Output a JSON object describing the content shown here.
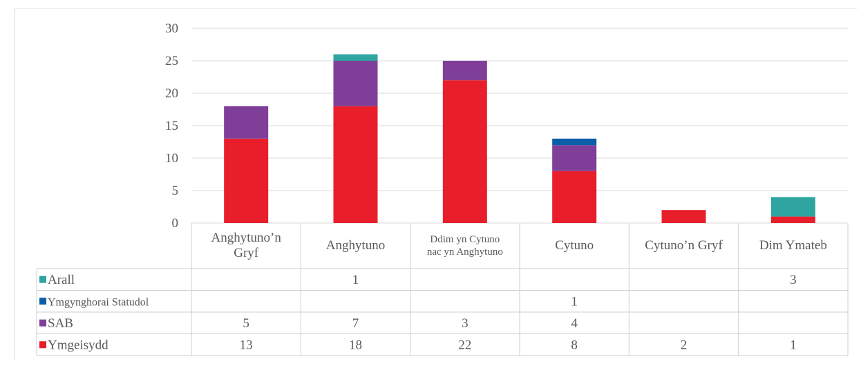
{
  "chart_data": {
    "type": "bar",
    "stacked": true,
    "categories": [
      [
        "Anghytuno’n",
        "Gryf"
      ],
      [
        "Anghytuno"
      ],
      [
        "Ddim yn Cytuno",
        "nac yn Anghytuno"
      ],
      [
        "Cytuno"
      ],
      [
        "Cytuno’n Gryf"
      ],
      [
        "Dim Ymateb"
      ]
    ],
    "series": [
      {
        "name": "Ymgeisydd",
        "color": "#e81f2b",
        "values": [
          13,
          18,
          22,
          8,
          2,
          1
        ]
      },
      {
        "name": "SAB",
        "color": "#7f3f98",
        "values": [
          5,
          7,
          3,
          4,
          null,
          null
        ]
      },
      {
        "name": "Ymgynghorai Statudol",
        "color": "#0b5ea8",
        "values": [
          null,
          null,
          null,
          1,
          null,
          null
        ]
      },
      {
        "name": "Arall",
        "color": "#2ea5a0",
        "values": [
          null,
          1,
          null,
          null,
          null,
          3
        ]
      }
    ],
    "yticks": [
      0,
      5,
      10,
      15,
      20,
      25,
      30
    ],
    "ylim": [
      0,
      30
    ],
    "grid": true,
    "data_table": true
  }
}
